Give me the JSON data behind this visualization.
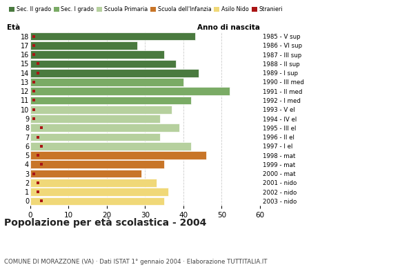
{
  "ages": [
    18,
    17,
    16,
    15,
    14,
    13,
    12,
    11,
    10,
    9,
    8,
    7,
    6,
    5,
    4,
    3,
    2,
    1,
    0
  ],
  "anno_nascita": [
    "1985 - V sup",
    "1986 - VI sup",
    "1987 - III sup",
    "1988 - II sup",
    "1989 - I sup",
    "1990 - III med",
    "1991 - II med",
    "1992 - I med",
    "1993 - V el",
    "1994 - IV el",
    "1995 - III el",
    "1996 - II el",
    "1997 - I el",
    "1998 - mat",
    "1999 - mat",
    "2000 - mat",
    "2001 - nido",
    "2002 - nido",
    "2003 - nido"
  ],
  "bar_values": [
    43,
    28,
    35,
    38,
    44,
    40,
    52,
    42,
    37,
    34,
    39,
    34,
    42,
    46,
    35,
    29,
    33,
    36,
    35
  ],
  "stranieri": [
    1,
    1,
    1,
    2,
    2,
    1,
    1,
    1,
    1,
    1,
    3,
    2,
    3,
    2,
    3,
    1,
    2,
    2,
    3
  ],
  "bar_colors": [
    "#4a7a3f",
    "#4a7a3f",
    "#4a7a3f",
    "#4a7a3f",
    "#4a7a3f",
    "#7aab65",
    "#7aab65",
    "#7aab65",
    "#b6d09e",
    "#b6d09e",
    "#b6d09e",
    "#b6d09e",
    "#b6d09e",
    "#c87528",
    "#c87528",
    "#c87528",
    "#f0d878",
    "#f0d878",
    "#f0d878"
  ],
  "legend_labels": [
    "Sec. II grado",
    "Sec. I grado",
    "Scuola Primaria",
    "Scuola dell'Infanzia",
    "Asilo Nido",
    "Stranieri"
  ],
  "legend_colors": [
    "#4a7a3f",
    "#7aab65",
    "#b6d09e",
    "#c87528",
    "#f0d878",
    "#aa1515"
  ],
  "stranieri_color": "#aa1515",
  "title": "Popolazione per età scolastica - 2004",
  "subtitle": "COMUNE DI MORAZZONE (VA) · Dati ISTAT 1° gennaio 2004 · Elaborazione TUTTITALIA.IT",
  "eta_label": "Età",
  "anno_label": "Anno di nascita",
  "xlim": [
    0,
    60
  ],
  "xticks": [
    0,
    10,
    20,
    30,
    40,
    50,
    60
  ],
  "grid_color": "#cccccc",
  "bg_color": "#ffffff"
}
